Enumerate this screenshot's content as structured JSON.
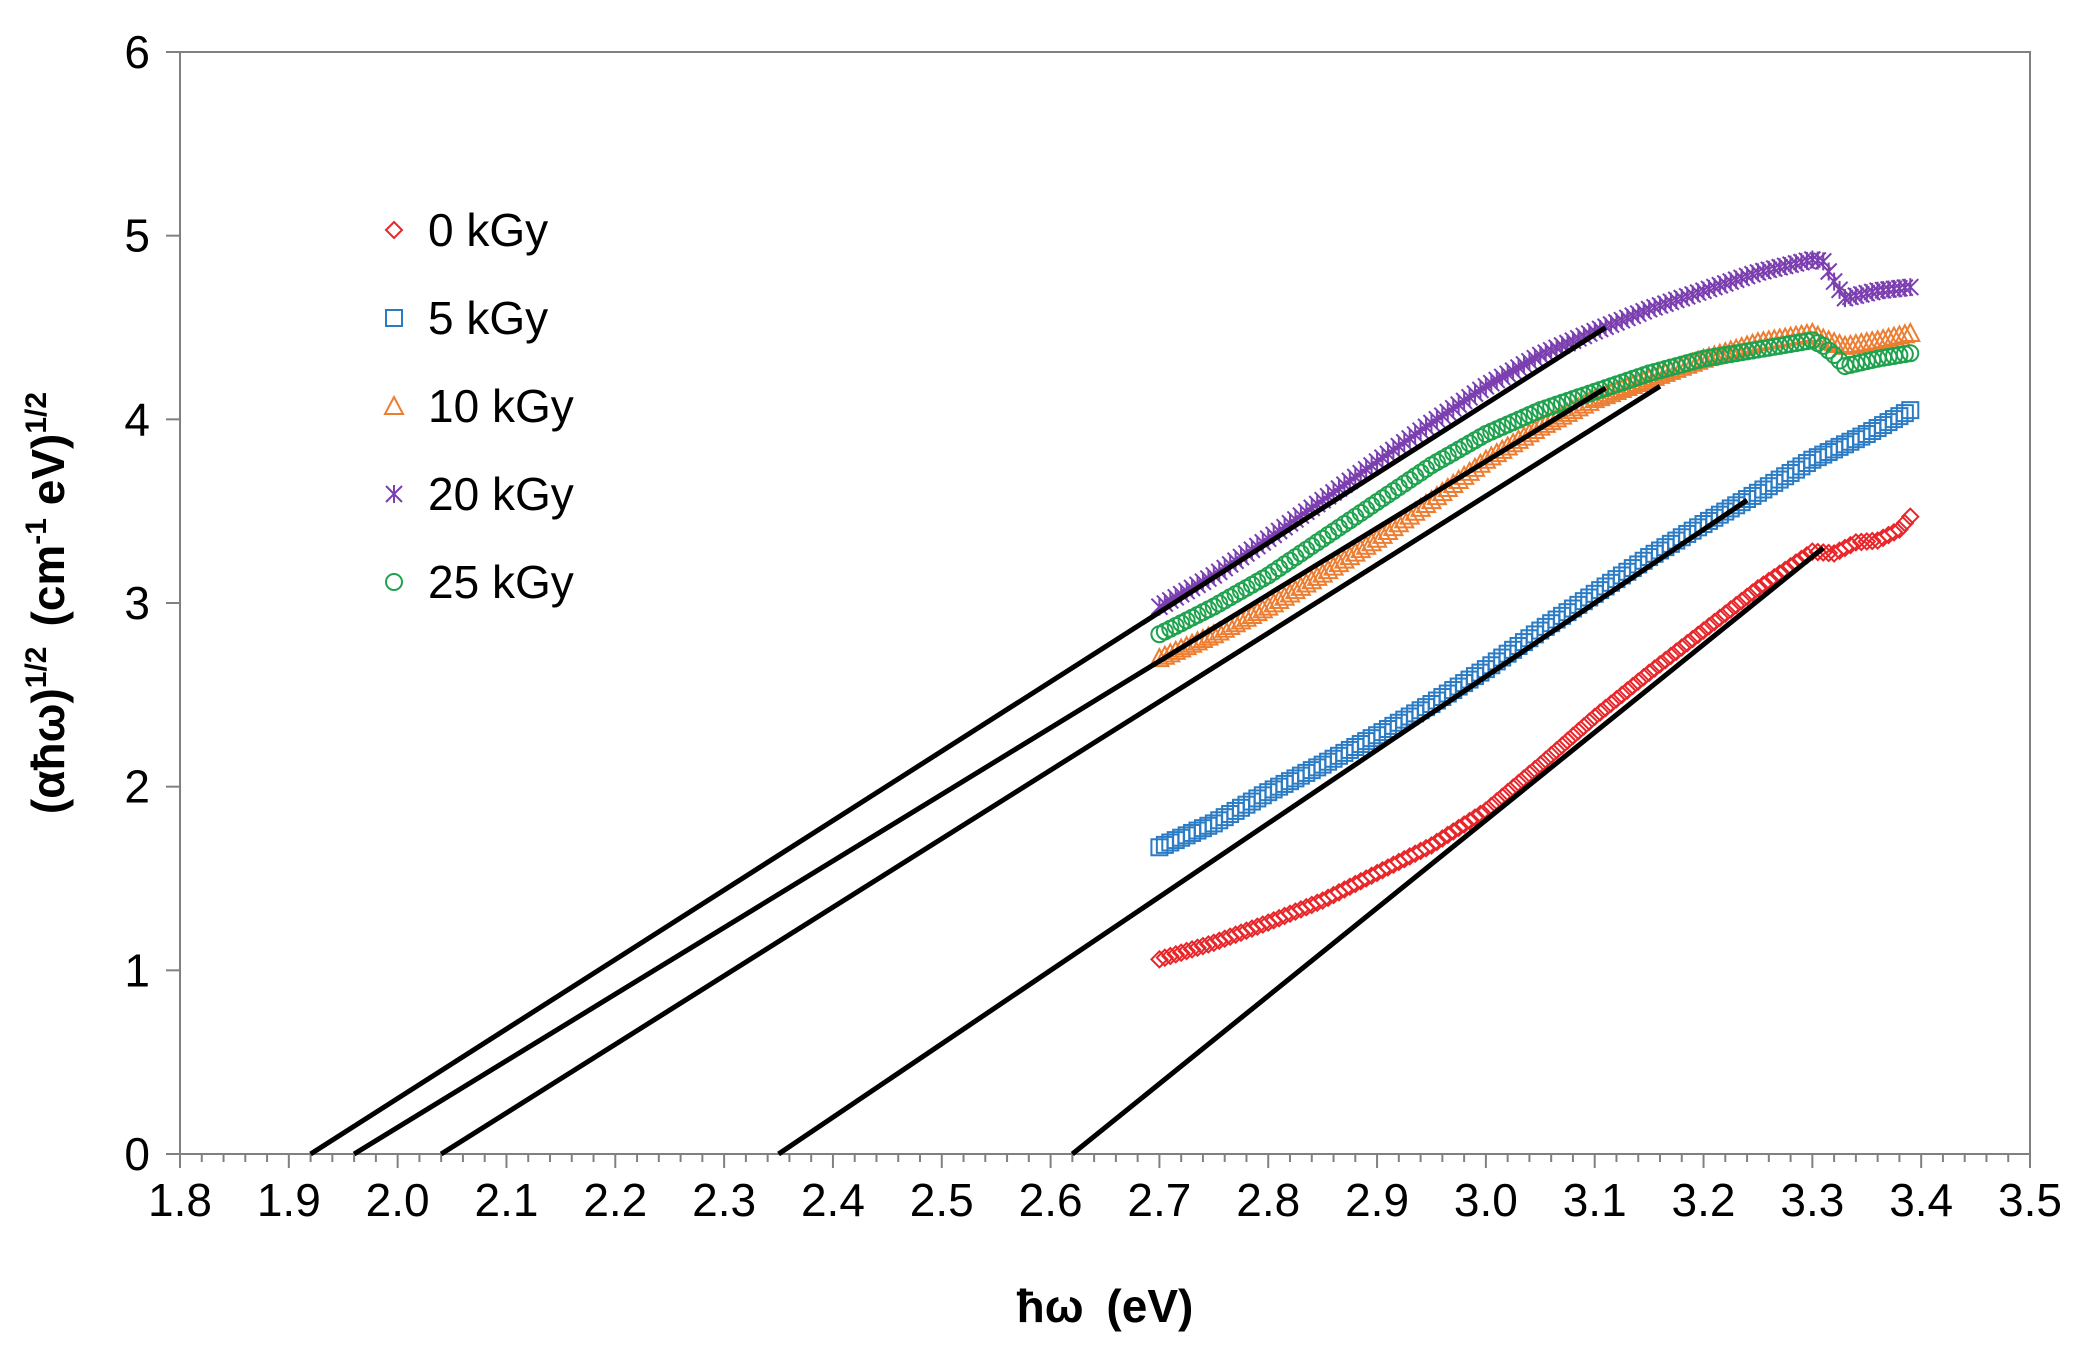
{
  "chart_data": {
    "type": "scatter",
    "xlabel_main": "ħω",
    "xlabel_unit": "(eV)",
    "ylabel": {
      "base": "(αħω)",
      "sup1": "1/2",
      "unit_open": "(cm",
      "unit_sup": "-1",
      "unit_close": " eV)",
      "sup2": "1/2"
    },
    "xlim": [
      1.8,
      3.5
    ],
    "ylim": [
      0,
      6
    ],
    "x_ticks": [
      "1.8",
      "1.9",
      "2.0",
      "2.1",
      "2.2",
      "2.3",
      "2.4",
      "2.5",
      "2.6",
      "2.7",
      "2.8",
      "2.9",
      "3.0",
      "3.1",
      "3.2",
      "3.3",
      "3.4",
      "3.5"
    ],
    "y_ticks": [
      "0",
      "1",
      "2",
      "3",
      "4",
      "5",
      "6"
    ],
    "x_minor_step": 0.02,
    "grid": false,
    "legend_position": "top-left",
    "series": [
      {
        "name": "0 kGy",
        "color": "#e8262a",
        "marker": "diamond",
        "points": [
          [
            2.7,
            1.06
          ],
          [
            2.75,
            1.15
          ],
          [
            2.8,
            1.26
          ],
          [
            2.85,
            1.38
          ],
          [
            2.9,
            1.53
          ],
          [
            2.95,
            1.68
          ],
          [
            3.0,
            1.87
          ],
          [
            3.05,
            2.12
          ],
          [
            3.1,
            2.38
          ],
          [
            3.15,
            2.62
          ],
          [
            3.2,
            2.85
          ],
          [
            3.25,
            3.08
          ],
          [
            3.28,
            3.2
          ],
          [
            3.3,
            3.28
          ],
          [
            3.32,
            3.27
          ],
          [
            3.34,
            3.33
          ],
          [
            3.36,
            3.34
          ],
          [
            3.38,
            3.4
          ],
          [
            3.39,
            3.47
          ]
        ]
      },
      {
        "name": "5 kGy",
        "color": "#2a7bc4",
        "marker": "square",
        "points": [
          [
            2.7,
            1.67
          ],
          [
            2.75,
            1.8
          ],
          [
            2.8,
            1.97
          ],
          [
            2.85,
            2.12
          ],
          [
            2.9,
            2.28
          ],
          [
            2.95,
            2.45
          ],
          [
            3.0,
            2.64
          ],
          [
            3.05,
            2.85
          ],
          [
            3.1,
            3.05
          ],
          [
            3.15,
            3.25
          ],
          [
            3.2,
            3.43
          ],
          [
            3.25,
            3.6
          ],
          [
            3.3,
            3.78
          ],
          [
            3.35,
            3.92
          ],
          [
            3.39,
            4.05
          ]
        ]
      },
      {
        "name": "10 kGy",
        "color": "#ed7d31",
        "marker": "triangle",
        "points": [
          [
            2.7,
            2.7
          ],
          [
            2.75,
            2.83
          ],
          [
            2.8,
            2.98
          ],
          [
            2.85,
            3.16
          ],
          [
            2.9,
            3.35
          ],
          [
            2.95,
            3.56
          ],
          [
            3.0,
            3.78
          ],
          [
            3.05,
            3.96
          ],
          [
            3.1,
            4.11
          ],
          [
            3.15,
            4.22
          ],
          [
            3.2,
            4.33
          ],
          [
            3.25,
            4.42
          ],
          [
            3.3,
            4.47
          ],
          [
            3.31,
            4.44
          ],
          [
            3.33,
            4.4
          ],
          [
            3.36,
            4.43
          ],
          [
            3.39,
            4.47
          ]
        ]
      },
      {
        "name": "20 kGy",
        "color": "#7b3fb0",
        "marker": "asterisk",
        "points": [
          [
            2.7,
            2.98
          ],
          [
            2.75,
            3.15
          ],
          [
            2.8,
            3.35
          ],
          [
            2.85,
            3.56
          ],
          [
            2.9,
            3.77
          ],
          [
            2.95,
            3.98
          ],
          [
            3.0,
            4.18
          ],
          [
            3.05,
            4.35
          ],
          [
            3.1,
            4.48
          ],
          [
            3.15,
            4.6
          ],
          [
            3.2,
            4.7
          ],
          [
            3.25,
            4.8
          ],
          [
            3.3,
            4.87
          ],
          [
            3.31,
            4.86
          ],
          [
            3.32,
            4.75
          ],
          [
            3.33,
            4.66
          ],
          [
            3.36,
            4.7
          ],
          [
            3.39,
            4.72
          ]
        ]
      },
      {
        "name": "25 kGy",
        "color": "#1fa24e",
        "marker": "circle",
        "points": [
          [
            2.7,
            2.83
          ],
          [
            2.75,
            2.98
          ],
          [
            2.8,
            3.15
          ],
          [
            2.85,
            3.35
          ],
          [
            2.9,
            3.55
          ],
          [
            2.95,
            3.75
          ],
          [
            3.0,
            3.92
          ],
          [
            3.05,
            4.05
          ],
          [
            3.1,
            4.15
          ],
          [
            3.15,
            4.25
          ],
          [
            3.2,
            4.33
          ],
          [
            3.25,
            4.38
          ],
          [
            3.3,
            4.43
          ],
          [
            3.31,
            4.4
          ],
          [
            3.32,
            4.35
          ],
          [
            3.33,
            4.29
          ],
          [
            3.36,
            4.33
          ],
          [
            3.39,
            4.36
          ]
        ]
      }
    ],
    "fit_lines": [
      {
        "series": "20 kGy",
        "x": [
          1.92,
          3.11
        ],
        "y": [
          0,
          4.5
        ]
      },
      {
        "series": "25 kGy",
        "x": [
          1.96,
          3.11
        ],
        "y": [
          0,
          4.17
        ]
      },
      {
        "series": "10 kGy",
        "x": [
          2.04,
          3.16
        ],
        "y": [
          0,
          4.18
        ]
      },
      {
        "series": "5 kGy",
        "x": [
          2.35,
          3.24
        ],
        "y": [
          0,
          3.56
        ]
      },
      {
        "series": "0 kGy",
        "x": [
          2.62,
          3.31
        ],
        "y": [
          0,
          3.3
        ]
      }
    ]
  }
}
